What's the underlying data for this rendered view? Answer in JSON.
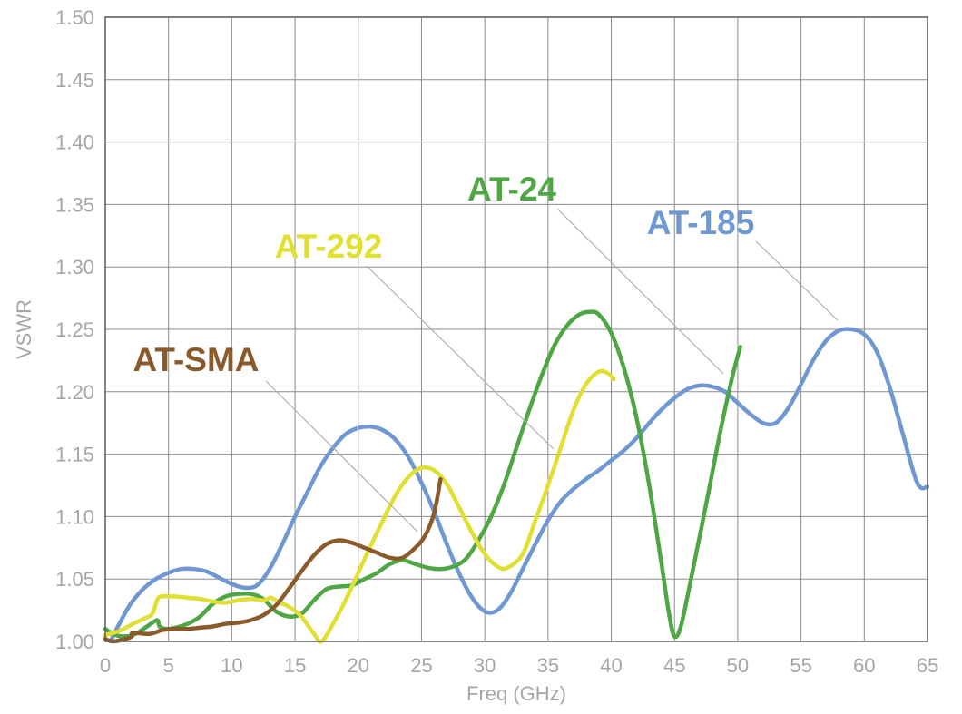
{
  "chart_data": {
    "type": "line",
    "title": "",
    "xlabel": "Freq (GHz)",
    "ylabel": "VSWR",
    "xlim": [
      0,
      65
    ],
    "ylim": [
      1.0,
      1.5
    ],
    "x_ticks": [
      "0",
      "5",
      "10",
      "15",
      "20",
      "25",
      "30",
      "35",
      "40",
      "45",
      "50",
      "55",
      "60",
      "65"
    ],
    "y_ticks": [
      "1.00",
      "1.05",
      "1.10",
      "1.15",
      "1.20",
      "1.25",
      "1.30",
      "1.35",
      "1.40",
      "1.45",
      "1.50"
    ],
    "grid": true,
    "legend": "inline labels with leader lines",
    "series": [
      {
        "name": "AT-185",
        "color": "#6f98d2",
        "points": [
          [
            0.5,
            1.002
          ],
          [
            1,
            1.012
          ],
          [
            2,
            1.03
          ],
          [
            3,
            1.042
          ],
          [
            4,
            1.05
          ],
          [
            5,
            1.055
          ],
          [
            6,
            1.058
          ],
          [
            7,
            1.058
          ],
          [
            8,
            1.056
          ],
          [
            9,
            1.051
          ],
          [
            10,
            1.046
          ],
          [
            11,
            1.043
          ],
          [
            12,
            1.045
          ],
          [
            13,
            1.058
          ],
          [
            14,
            1.078
          ],
          [
            15,
            1.1
          ],
          [
            16,
            1.12
          ],
          [
            17,
            1.14
          ],
          [
            18,
            1.155
          ],
          [
            19,
            1.166
          ],
          [
            20,
            1.171
          ],
          [
            21,
            1.172
          ],
          [
            22,
            1.169
          ],
          [
            23,
            1.161
          ],
          [
            24,
            1.147
          ],
          [
            25,
            1.127
          ],
          [
            26,
            1.104
          ],
          [
            27,
            1.078
          ],
          [
            28,
            1.054
          ],
          [
            29,
            1.035
          ],
          [
            30,
            1.024
          ],
          [
            31,
            1.025
          ],
          [
            32,
            1.038
          ],
          [
            33,
            1.058
          ],
          [
            34,
            1.078
          ],
          [
            35,
            1.097
          ],
          [
            36,
            1.112
          ],
          [
            37,
            1.122
          ],
          [
            38,
            1.13
          ],
          [
            39,
            1.137
          ],
          [
            40,
            1.145
          ],
          [
            41,
            1.153
          ],
          [
            42,
            1.163
          ],
          [
            43,
            1.175
          ],
          [
            44,
            1.186
          ],
          [
            45,
            1.195
          ],
          [
            46,
            1.202
          ],
          [
            47,
            1.205
          ],
          [
            48,
            1.204
          ],
          [
            49,
            1.2
          ],
          [
            50,
            1.191
          ],
          [
            51,
            1.182
          ],
          [
            52,
            1.175
          ],
          [
            53,
            1.175
          ],
          [
            54,
            1.187
          ],
          [
            55,
            1.206
          ],
          [
            56,
            1.226
          ],
          [
            57,
            1.241
          ],
          [
            58,
            1.249
          ],
          [
            59,
            1.25
          ],
          [
            60,
            1.246
          ],
          [
            61,
            1.232
          ],
          [
            62,
            1.204
          ],
          [
            63,
            1.168
          ],
          [
            64,
            1.132
          ],
          [
            64.5,
            1.123
          ],
          [
            65,
            1.124
          ]
        ]
      },
      {
        "name": "AT-24",
        "color": "#4ea645",
        "points": [
          [
            0,
            1.01
          ],
          [
            0.6,
            1.006
          ],
          [
            1.4,
            1.004
          ],
          [
            2.4,
            1.006
          ],
          [
            3.3,
            1.012
          ],
          [
            4.1,
            1.017
          ],
          [
            4.3,
            1.012
          ],
          [
            5,
            1.01
          ],
          [
            6.5,
            1.014
          ],
          [
            7.5,
            1.02
          ],
          [
            8.5,
            1.03
          ],
          [
            9.5,
            1.036
          ],
          [
            10.5,
            1.038
          ],
          [
            11.5,
            1.038
          ],
          [
            12.5,
            1.034
          ],
          [
            13.5,
            1.024
          ],
          [
            14.5,
            1.02
          ],
          [
            15.5,
            1.022
          ],
          [
            16.5,
            1.033
          ],
          [
            17.5,
            1.042
          ],
          [
            18.5,
            1.044
          ],
          [
            19.5,
            1.045
          ],
          [
            20.5,
            1.05
          ],
          [
            21.5,
            1.055
          ],
          [
            22.5,
            1.062
          ],
          [
            23.5,
            1.065
          ],
          [
            24.5,
            1.062
          ],
          [
            25.5,
            1.059
          ],
          [
            26.5,
            1.058
          ],
          [
            27.5,
            1.06
          ],
          [
            28.5,
            1.066
          ],
          [
            29.5,
            1.081
          ],
          [
            30.5,
            1.1
          ],
          [
            31.5,
            1.125
          ],
          [
            32.5,
            1.155
          ],
          [
            33.5,
            1.185
          ],
          [
            34.5,
            1.213
          ],
          [
            35.5,
            1.237
          ],
          [
            36.5,
            1.253
          ],
          [
            37.5,
            1.262
          ],
          [
            38.3,
            1.264
          ],
          [
            39,
            1.262
          ],
          [
            40,
            1.247
          ],
          [
            41,
            1.219
          ],
          [
            42,
            1.179
          ],
          [
            43,
            1.125
          ],
          [
            44,
            1.06
          ],
          [
            44.6,
            1.02
          ],
          [
            45,
            1.004
          ],
          [
            45.5,
            1.012
          ],
          [
            46.3,
            1.05
          ],
          [
            47.5,
            1.11
          ],
          [
            48.7,
            1.172
          ],
          [
            49.6,
            1.213
          ],
          [
            50.2,
            1.236
          ]
        ]
      },
      {
        "name": "AT-292",
        "color": "#e0e032",
        "points": [
          [
            0,
            1.005
          ],
          [
            1,
            1.008
          ],
          [
            2,
            1.013
          ],
          [
            3,
            1.018
          ],
          [
            3.7,
            1.022
          ],
          [
            4.1,
            1.033
          ],
          [
            4.4,
            1.036
          ],
          [
            5.5,
            1.036
          ],
          [
            6.5,
            1.035
          ],
          [
            7.5,
            1.034
          ],
          [
            8.5,
            1.032
          ],
          [
            9.5,
            1.031
          ],
          [
            10.5,
            1.033
          ],
          [
            11.5,
            1.034
          ],
          [
            12.5,
            1.033
          ],
          [
            13.1,
            1.035
          ],
          [
            13.8,
            1.031
          ],
          [
            14.5,
            1.028
          ],
          [
            15.5,
            1.02
          ],
          [
            16.5,
            1.006
          ],
          [
            17.1,
            1.0
          ],
          [
            18,
            1.014
          ],
          [
            19,
            1.033
          ],
          [
            20,
            1.055
          ],
          [
            21,
            1.077
          ],
          [
            22,
            1.098
          ],
          [
            23,
            1.118
          ],
          [
            24,
            1.132
          ],
          [
            25,
            1.139
          ],
          [
            26,
            1.137
          ],
          [
            27,
            1.126
          ],
          [
            28,
            1.107
          ],
          [
            29,
            1.087
          ],
          [
            30,
            1.07
          ],
          [
            31,
            1.06
          ],
          [
            31.8,
            1.059
          ],
          [
            33,
            1.07
          ],
          [
            34,
            1.097
          ],
          [
            35,
            1.125
          ],
          [
            36,
            1.155
          ],
          [
            37,
            1.185
          ],
          [
            38,
            1.206
          ],
          [
            39,
            1.216
          ],
          [
            39.7,
            1.215
          ],
          [
            40.2,
            1.21
          ]
        ]
      },
      {
        "name": "AT-SMA",
        "color": "#8b5a2b",
        "points": [
          [
            0,
            1.002
          ],
          [
            0.6,
            1.0
          ],
          [
            1.6,
            1.002
          ],
          [
            2.1,
            1.004
          ],
          [
            2.2,
            1.007
          ],
          [
            3.5,
            1.006
          ],
          [
            4.5,
            1.009
          ],
          [
            5.5,
            1.01
          ],
          [
            6.5,
            1.01
          ],
          [
            7.5,
            1.011
          ],
          [
            8.5,
            1.012
          ],
          [
            9.5,
            1.014
          ],
          [
            10.5,
            1.015
          ],
          [
            11.5,
            1.017
          ],
          [
            12.5,
            1.021
          ],
          [
            13.5,
            1.029
          ],
          [
            14.5,
            1.042
          ],
          [
            15.5,
            1.056
          ],
          [
            16.5,
            1.069
          ],
          [
            17.5,
            1.078
          ],
          [
            18.5,
            1.081
          ],
          [
            19.5,
            1.079
          ],
          [
            20.5,
            1.075
          ],
          [
            21.5,
            1.071
          ],
          [
            22.5,
            1.067
          ],
          [
            23.5,
            1.067
          ],
          [
            24.5,
            1.075
          ],
          [
            25.3,
            1.085
          ],
          [
            26,
            1.103
          ],
          [
            26.5,
            1.13
          ]
        ]
      }
    ],
    "annotations": [
      {
        "text": "AT-SMA",
        "color": "#8b5a2b"
      },
      {
        "text": "AT-292",
        "color": "#e0e032"
      },
      {
        "text": "AT-24",
        "color": "#4ea645"
      },
      {
        "text": "AT-185",
        "color": "#6f98d2"
      }
    ]
  }
}
